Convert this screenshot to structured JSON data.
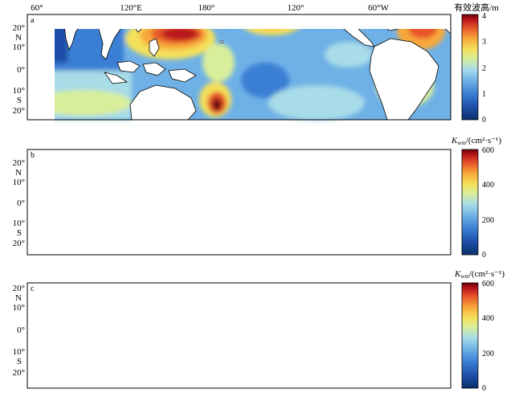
{
  "chart_data": [
    {
      "type": "heatmap",
      "panel_label": "a",
      "colorbar_label": "有效波高/m",
      "colorbar_min": 0,
      "colorbar_max": 4,
      "colorbar_ticks": [
        "0",
        "1",
        "2",
        "3",
        "4"
      ]
    },
    {
      "type": "heatmap",
      "panel_label": "b",
      "colorbar_label_main": "K",
      "colorbar_label_sub": "wm",
      "colorbar_label_unit": "/(cm²·s⁻¹)",
      "colorbar_min": 0,
      "colorbar_max": 600,
      "colorbar_ticks": [
        "0",
        "200",
        "400",
        "600"
      ]
    },
    {
      "type": "heatmap",
      "panel_label": "c",
      "colorbar_label_main": "K",
      "colorbar_label_sub": "wm",
      "colorbar_label_unit": "/(cm²·s⁻¹)",
      "colorbar_min": 0,
      "colorbar_max": 600,
      "colorbar_ticks": [
        "0",
        "200",
        "400",
        "600"
      ]
    }
  ],
  "axes": {
    "x_ticks": [
      "60°",
      "120°E",
      "180°",
      "120°",
      "60°W"
    ],
    "y_ticks": [
      "20°",
      "N",
      "10°",
      "0°",
      "10°",
      "S",
      "20°"
    ]
  },
  "colormap": [
    "#08306b",
    "#1f4ea8",
    "#3b7fd4",
    "#6fb1e6",
    "#a8dce8",
    "#d8ee9a",
    "#f4e05a",
    "#f7a83a",
    "#e8562a",
    "#b8161c",
    "#6e0008"
  ]
}
